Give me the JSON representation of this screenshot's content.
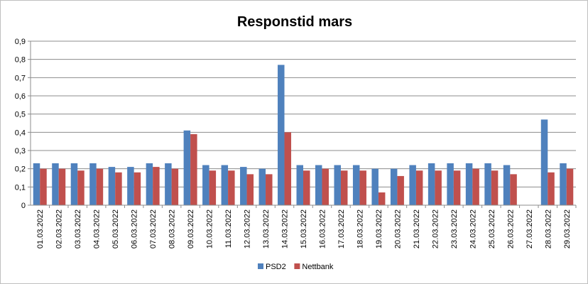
{
  "chart_data": {
    "type": "bar",
    "title": "Responstid mars",
    "xlabel": "",
    "ylabel": "",
    "ylim": [
      0,
      0.9
    ],
    "yticks": [
      "0",
      "0,1",
      "0,2",
      "0,3",
      "0,4",
      "0,5",
      "0,6",
      "0,7",
      "0,8",
      "0,9"
    ],
    "grid": true,
    "legend_position": "bottom",
    "categories": [
      "01.03.2022",
      "02.03.2022",
      "03.03.2022",
      "04.03.2022",
      "05.03.2022",
      "06.03.2022",
      "07.03.2022",
      "08.03.2022",
      "09.03.2022",
      "10.03.2022",
      "11.03.2022",
      "12.03.2022",
      "13.03.2022",
      "14.03.2022",
      "15.03.2022",
      "16.03.2022",
      "17.03.2022",
      "18.03.2022",
      "19.03.2022",
      "20.03.2022",
      "21.03.2022",
      "22.03.2022",
      "23.03.2022",
      "24.03.2022",
      "25.03.2022",
      "26.03.2022",
      "27.03.2022",
      "28.03.2022",
      "29.03.2022"
    ],
    "series": [
      {
        "name": "PSD2",
        "color": "#4f81bd",
        "values": [
          0.23,
          0.23,
          0.23,
          0.23,
          0.21,
          0.21,
          0.23,
          0.23,
          0.41,
          0.22,
          0.22,
          0.21,
          0.2,
          0.77,
          0.22,
          0.22,
          0.22,
          0.22,
          0.2,
          0.2,
          0.22,
          0.23,
          0.23,
          0.23,
          0.23,
          0.22,
          0,
          0.47,
          0.23
        ]
      },
      {
        "name": "Nettbank",
        "color": "#c0504d",
        "values": [
          0.2,
          0.2,
          0.19,
          0.2,
          0.18,
          0.18,
          0.21,
          0.2,
          0.39,
          0.19,
          0.19,
          0.17,
          0.17,
          0.4,
          0.19,
          0.2,
          0.19,
          0.19,
          0.07,
          0.16,
          0.19,
          0.19,
          0.19,
          0.2,
          0.19,
          0.17,
          0,
          0.18,
          0.2
        ]
      }
    ]
  }
}
